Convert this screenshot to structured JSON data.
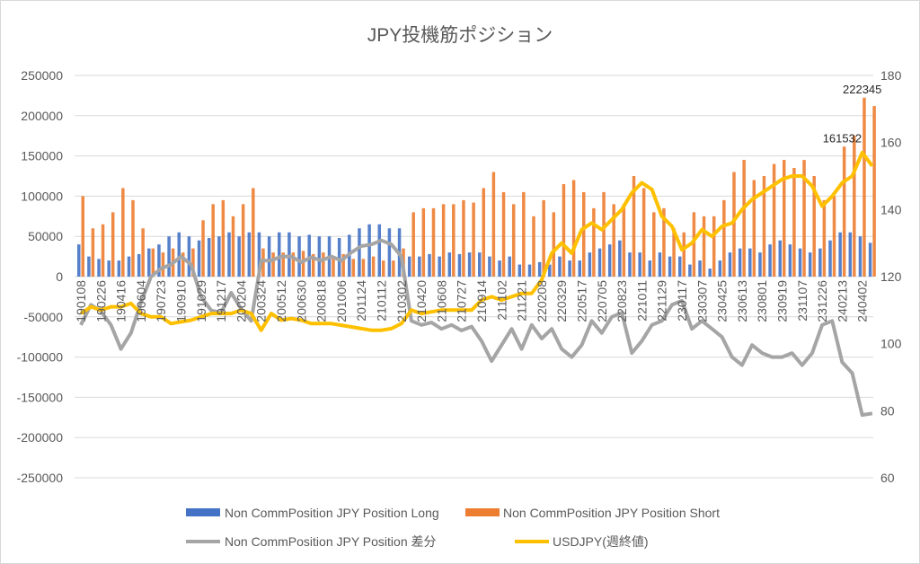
{
  "chart_data": {
    "type": "bar+line",
    "title": "JPY投機筋ポジション",
    "left_axis": {
      "ylim": [
        -250000,
        250000
      ],
      "step": 50000,
      "ticks": [
        "250000",
        "200000",
        "150000",
        "100000",
        "50000",
        "0",
        "-50000",
        "-100000",
        "-150000",
        "-200000",
        "-250000"
      ]
    },
    "right_axis": {
      "ylim": [
        60,
        180
      ],
      "step": 20,
      "ticks": [
        "180",
        "160",
        "140",
        "120",
        "100",
        "80",
        "60"
      ]
    },
    "grid": true,
    "x_tick_labels": [
      "190108",
      "190226",
      "190416",
      "190604",
      "190723",
      "190910",
      "191029",
      "191217",
      "200204",
      "200324",
      "200512",
      "200630",
      "200818",
      "201006",
      "201124",
      "210112",
      "210302",
      "210420",
      "210608",
      "210727",
      "210914",
      "211102",
      "211221",
      "220208",
      "220329",
      "220517",
      "220705",
      "220823",
      "221011",
      "221129",
      "230117",
      "230307",
      "230425",
      "230613",
      "230801",
      "230919",
      "231107",
      "231226",
      "240213",
      "240402"
    ],
    "points_per_tick": 2,
    "series": [
      {
        "name": "Non CommPosition JPY Position Long",
        "kind": "bar",
        "axis": "left",
        "color": "#4472C4",
        "values": [
          40000,
          25000,
          22000,
          20000,
          20000,
          25000,
          28000,
          35000,
          40000,
          50000,
          55000,
          50000,
          45000,
          48000,
          50000,
          55000,
          50000,
          55000,
          55000,
          50000,
          55000,
          55000,
          50000,
          52000,
          50000,
          50000,
          48000,
          52000,
          60000,
          65000,
          65000,
          60000,
          60000,
          25000,
          25000,
          28000,
          25000,
          30000,
          28000,
          30000,
          30000,
          25000,
          20000,
          25000,
          15000,
          15000,
          18000,
          15000,
          25000,
          20000,
          20000,
          30000,
          35000,
          40000,
          45000,
          30000,
          30000,
          20000,
          30000,
          25000,
          25000,
          15000,
          20000,
          10000,
          20000,
          30000,
          35000,
          35000,
          30000,
          40000,
          45000,
          40000,
          35000,
          30000,
          35000,
          45000,
          55000,
          55000,
          50000,
          42000
        ]
      },
      {
        "name": "Non CommPosition JPY Position Short",
        "kind": "bar",
        "axis": "left",
        "color": "#ED7D31",
        "values": [
          100000,
          60000,
          65000,
          80000,
          110000,
          95000,
          60000,
          35000,
          30000,
          35000,
          30000,
          35000,
          70000,
          90000,
          95000,
          75000,
          90000,
          110000,
          35000,
          30000,
          30000,
          30000,
          32000,
          28000,
          30000,
          25000,
          28000,
          22000,
          22000,
          25000,
          20000,
          20000,
          35000,
          80000,
          85000,
          85000,
          90000,
          90000,
          95000,
          92000,
          110000,
          130000,
          105000,
          90000,
          105000,
          75000,
          95000,
          80000,
          115000,
          120000,
          105000,
          85000,
          105000,
          90000,
          90000,
          125000,
          110000,
          80000,
          85000,
          60000,
          55000,
          80000,
          75000,
          75000,
          95000,
          130000,
          145000,
          120000,
          125000,
          140000,
          145000,
          135000,
          145000,
          125000,
          95000,
          100000,
          161532,
          175000,
          222345,
          212000
        ]
      },
      {
        "name": "Non CommPosition JPY Position 差分",
        "kind": "line",
        "axis": "left",
        "color": "#A5A5A5",
        "values": [
          -60000,
          -35000,
          -43000,
          -60000,
          -90000,
          -70000,
          -32000,
          0,
          10000,
          15000,
          25000,
          15000,
          -25000,
          -42000,
          -45000,
          -20000,
          -40000,
          -55000,
          20000,
          20000,
          25000,
          25000,
          18000,
          24000,
          20000,
          25000,
          20000,
          30000,
          38000,
          40000,
          45000,
          40000,
          25000,
          -55000,
          -60000,
          -57000,
          -65000,
          -60000,
          -67000,
          -62000,
          -80000,
          -105000,
          -85000,
          -65000,
          -90000,
          -60000,
          -77000,
          -65000,
          -90000,
          -100000,
          -85000,
          -55000,
          -70000,
          -50000,
          -45000,
          -95000,
          -80000,
          -60000,
          -55000,
          -35000,
          -30000,
          -65000,
          -55000,
          -65000,
          -75000,
          -100000,
          -110000,
          -85000,
          -95000,
          -100000,
          -100000,
          -95000,
          -110000,
          -95000,
          -60000,
          -55000,
          -106500,
          -120000,
          -172000,
          -170000
        ]
      },
      {
        "name": "USDJPY(週終値)",
        "kind": "line",
        "axis": "right",
        "color": "#FFC000",
        "values": [
          109,
          111,
          110,
          111,
          111,
          112,
          109,
          108,
          108,
          106,
          106.5,
          107,
          108,
          109,
          109,
          109,
          110,
          109,
          104,
          109,
          107,
          107.5,
          107,
          106,
          106,
          106,
          105.5,
          105,
          104.5,
          104,
          104,
          104.5,
          106,
          110,
          109,
          109.5,
          110,
          110,
          110,
          110,
          113,
          114,
          113,
          114,
          115,
          115,
          119,
          127,
          130,
          127,
          134,
          136,
          134,
          137,
          140,
          145,
          148,
          146,
          138,
          135,
          128,
          130,
          134,
          132,
          135,
          136,
          140,
          143,
          145,
          147,
          149,
          150,
          150,
          147,
          141,
          144,
          148,
          150,
          157,
          153
        ]
      }
    ],
    "annotations": [
      {
        "series": 1,
        "index": 76,
        "text": "161532"
      },
      {
        "series": 1,
        "index": 78,
        "text": "222345"
      }
    ],
    "legend": {
      "placement": "bottom"
    }
  }
}
